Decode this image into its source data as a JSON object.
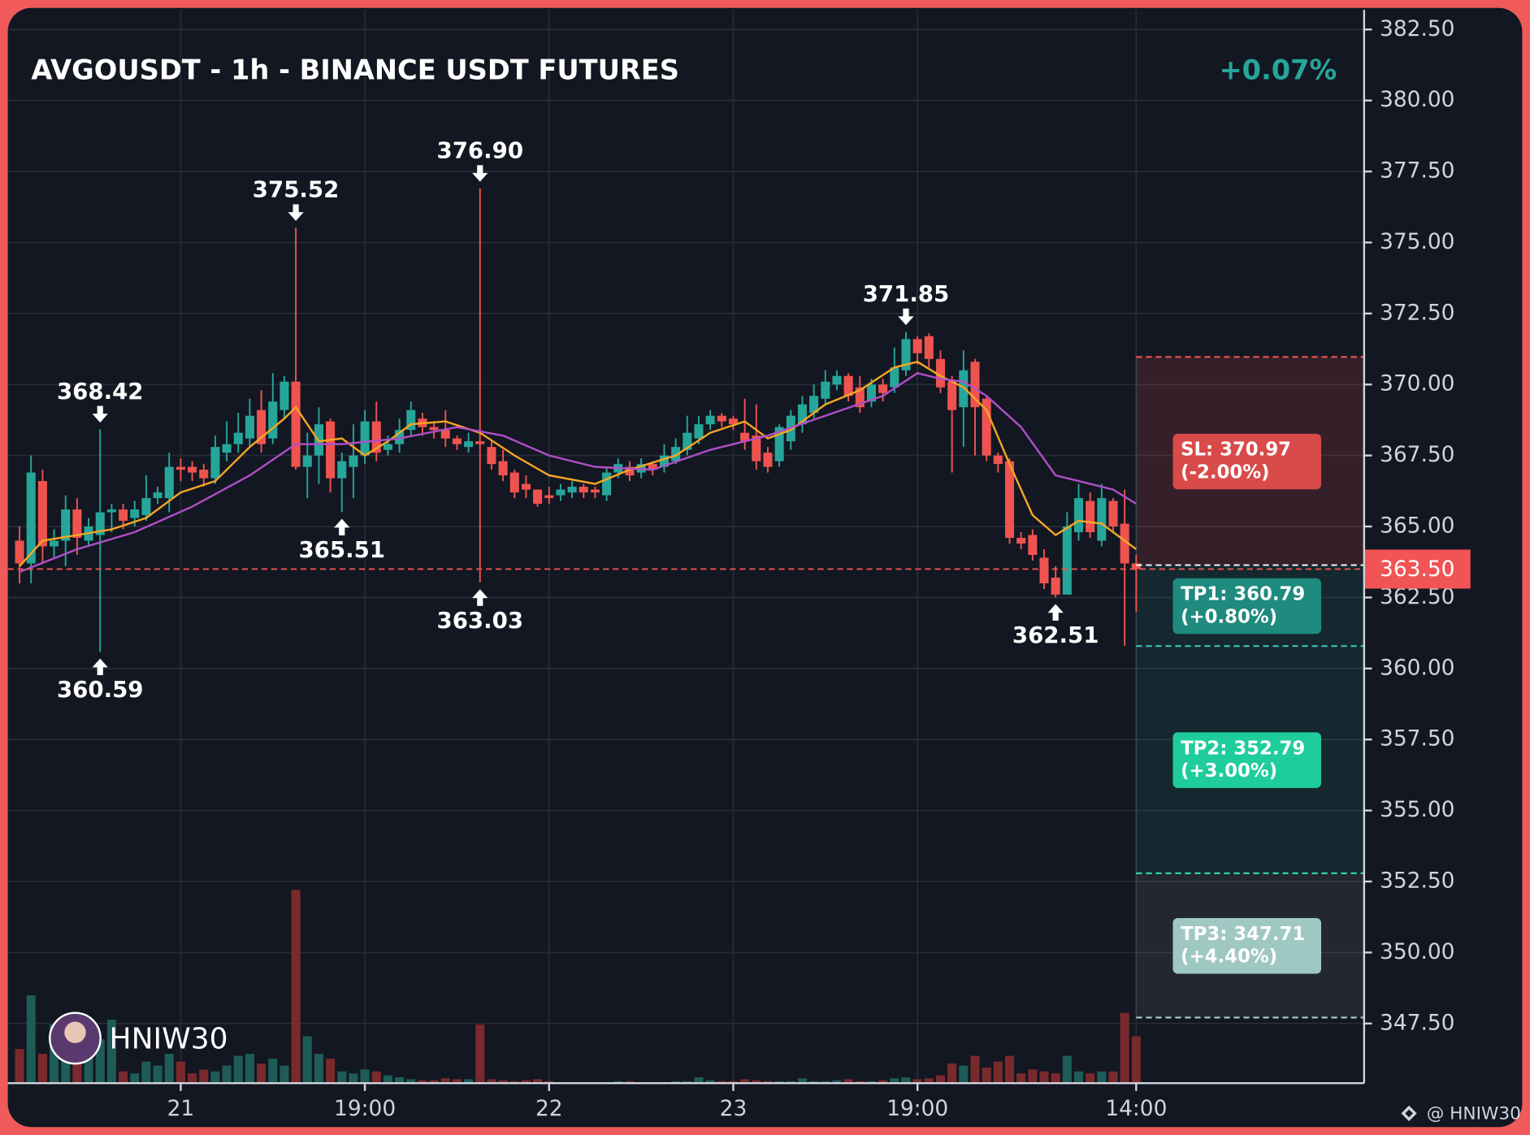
{
  "chart_data": {
    "type": "candlestick",
    "title": "AVGOUSDT - 1h - BINANCE USDT FUTURES",
    "change_label": "+0.07%",
    "watermark": "HNIW30",
    "footer": "@ HNIW30",
    "xlim": [
      -1.02,
      116.8
    ],
    "xticks": [
      {
        "value": 14,
        "label": "21"
      },
      {
        "value": 30,
        "label": "19:00"
      },
      {
        "value": 46,
        "label": "22"
      },
      {
        "value": 62,
        "label": "23"
      },
      {
        "value": 78,
        "label": "19:00"
      },
      {
        "value": 97,
        "label": "14:00"
      }
    ],
    "ylim": [
      345.4,
      383.19
    ],
    "yticks": [
      {
        "value": 382.5,
        "label": "382.50"
      },
      {
        "value": 380,
        "label": "380.00"
      },
      {
        "value": 377.5,
        "label": "377.50"
      },
      {
        "value": 375,
        "label": "375.00"
      },
      {
        "value": 372.5,
        "label": "372.50"
      },
      {
        "value": 370,
        "label": "370.00"
      },
      {
        "value": 367.5,
        "label": "367.50"
      },
      {
        "value": 365,
        "label": "365.00"
      },
      {
        "value": 362.5,
        "label": "362.50"
      },
      {
        "value": 360,
        "label": "360.00"
      },
      {
        "value": 357.5,
        "label": "357.50"
      },
      {
        "value": 355,
        "label": "355.00"
      },
      {
        "value": 352.5,
        "label": "352.50"
      },
      {
        "value": 350,
        "label": "350.00"
      },
      {
        "value": 347.5,
        "label": "347.50"
      }
    ],
    "grid": true,
    "up_color": "#26a69a",
    "down_color": "#ef5350",
    "open": [
      364.5,
      363.7,
      366.6,
      364.3,
      364.5,
      365.6,
      364.5,
      364.7,
      365.5,
      365.6,
      365.3,
      365.4,
      366.0,
      366.0,
      367.1,
      367.1,
      367.0,
      366.7,
      367.6,
      367.9,
      368.1,
      369.1,
      368.1,
      369.1,
      370.1,
      367.1,
      367.5,
      368.7,
      366.7,
      367.1,
      367.5,
      368.7,
      367.7,
      367.9,
      368.4,
      368.8,
      368.5,
      368.4,
      368.1,
      367.8,
      368.0,
      367.8,
      367.3,
      366.9,
      366.5,
      366.3,
      366.1,
      366.1,
      366.2,
      366.4,
      366.3,
      366.1,
      366.9,
      367.1,
      366.9,
      367.2,
      367.1,
      367.3,
      367.7,
      368.1,
      368.6,
      368.9,
      368.8,
      368.3,
      368.2,
      367.6,
      367.3,
      368.0,
      368.6,
      369.0,
      369.5,
      370.0,
      370.3,
      369.9,
      369.4,
      370.0,
      369.9,
      370.5,
      371.6,
      371.7,
      370.9,
      370.1,
      369.2,
      370.8,
      369.5,
      367.5,
      367.3,
      364.6,
      364.7,
      363.9,
      363.2,
      362.6,
      364.8,
      365.9,
      364.5,
      365.9,
      365.1,
      363.7
    ],
    "high": [
      365.0,
      367.5,
      367.0,
      364.9,
      366.1,
      366.0,
      365.3,
      368.42,
      365.8,
      365.8,
      365.9,
      366.8,
      366.4,
      367.6,
      367.4,
      367.3,
      367.2,
      368.2,
      368.7,
      369.0,
      369.5,
      369.8,
      370.4,
      370.3,
      375.52,
      368.3,
      369.2,
      368.8,
      367.6,
      368.6,
      369.1,
      369.4,
      368.2,
      368.8,
      369.4,
      369.0,
      368.7,
      369.1,
      368.2,
      368.3,
      376.9,
      368.0,
      367.7,
      367.0,
      366.8,
      366.3,
      366.4,
      366.5,
      366.6,
      366.5,
      366.4,
      367.1,
      367.4,
      367.3,
      367.4,
      367.3,
      367.9,
      368.1,
      368.9,
      368.9,
      369.1,
      369.0,
      368.9,
      369.5,
      369.3,
      367.8,
      368.6,
      369.1,
      369.6,
      370.0,
      370.5,
      370.5,
      370.4,
      370.3,
      370.2,
      370.2,
      371.3,
      371.85,
      371.7,
      371.8,
      371.2,
      370.3,
      371.2,
      370.9,
      369.6,
      367.6,
      367.4,
      364.8,
      364.9,
      364.2,
      363.6,
      365.5,
      366.5,
      366.2,
      366.5,
      366.0,
      366.3,
      364.0
    ],
    "low": [
      363.0,
      363.0,
      363.7,
      363.9,
      363.6,
      364.0,
      364.3,
      360.59,
      364.8,
      364.9,
      365.0,
      365.2,
      365.8,
      365.5,
      366.6,
      366.6,
      366.4,
      366.5,
      367.3,
      367.6,
      367.8,
      367.6,
      367.9,
      368.8,
      367.0,
      366.0,
      366.5,
      366.2,
      365.51,
      366.0,
      367.2,
      367.3,
      367.5,
      367.6,
      368.2,
      368.2,
      368.1,
      367.8,
      367.7,
      367.6,
      363.03,
      367.0,
      366.6,
      366.0,
      366.0,
      365.7,
      365.8,
      365.9,
      366.0,
      366.0,
      366.0,
      365.9,
      366.7,
      366.6,
      366.7,
      366.8,
      366.9,
      367.2,
      367.5,
      367.9,
      368.4,
      368.5,
      368.4,
      367.7,
      367.0,
      366.9,
      367.1,
      367.7,
      368.3,
      368.8,
      369.3,
      369.8,
      369.4,
      369.0,
      369.2,
      369.4,
      369.7,
      370.3,
      370.7,
      370.6,
      369.7,
      366.9,
      367.8,
      367.5,
      367.3,
      366.9,
      364.4,
      364.2,
      363.8,
      362.8,
      362.51,
      362.6,
      364.5,
      364.6,
      364.3,
      364.8,
      360.8,
      362.0
    ],
    "close": [
      363.7,
      366.9,
      364.3,
      364.5,
      365.6,
      364.6,
      365.0,
      365.5,
      365.6,
      365.2,
      365.6,
      366.0,
      366.2,
      367.1,
      367.0,
      366.9,
      366.7,
      367.8,
      367.9,
      368.3,
      368.9,
      367.9,
      369.4,
      370.1,
      367.1,
      367.5,
      368.6,
      366.7,
      367.3,
      367.5,
      368.7,
      367.6,
      367.9,
      368.4,
      369.1,
      368.5,
      368.4,
      368.1,
      367.9,
      368.0,
      367.9,
      367.2,
      366.8,
      366.2,
      366.3,
      365.8,
      366.0,
      366.3,
      366.4,
      366.2,
      366.2,
      366.9,
      367.2,
      366.8,
      367.2,
      367.0,
      367.5,
      367.8,
      368.3,
      368.6,
      368.9,
      368.7,
      368.6,
      368.0,
      367.3,
      367.1,
      368.5,
      368.9,
      369.3,
      369.6,
      370.1,
      370.3,
      369.6,
      369.2,
      370.0,
      369.7,
      370.6,
      371.6,
      371.1,
      370.9,
      369.9,
      369.1,
      370.5,
      369.2,
      367.5,
      367.2,
      364.6,
      364.4,
      364.0,
      363.0,
      362.6,
      365.0,
      366.0,
      364.8,
      366.0,
      365.0,
      363.7,
      363.5
    ],
    "volume": [
      35,
      90,
      30,
      60,
      40,
      55,
      30,
      45,
      65,
      12,
      10,
      22,
      18,
      30,
      22,
      10,
      14,
      12,
      18,
      28,
      30,
      20,
      25,
      18,
      198,
      48,
      30,
      25,
      12,
      10,
      14,
      12,
      8,
      6,
      4,
      3,
      3,
      5,
      4,
      4,
      60,
      4,
      3,
      2,
      3,
      4,
      2,
      1,
      1,
      1,
      1,
      1,
      2,
      2,
      1,
      1,
      1,
      2,
      2,
      6,
      3,
      2,
      2,
      4,
      3,
      2,
      2,
      2,
      5,
      2,
      2,
      3,
      4,
      2,
      2,
      3,
      5,
      6,
      4,
      5,
      8,
      20,
      18,
      28,
      16,
      22,
      28,
      10,
      14,
      12,
      10,
      28,
      12,
      10,
      12,
      12,
      72,
      48
    ],
    "vlim": [
      0,
      200
    ],
    "ma": [
      {
        "color": "#f5a623",
        "x": [
          0,
          2,
          5,
          8,
          11,
          14,
          17,
          20,
          23,
          24,
          26,
          28,
          30,
          32,
          34,
          37,
          40,
          43,
          46,
          50,
          53,
          57,
          60,
          63,
          65,
          67,
          70,
          73,
          76,
          78,
          80,
          82,
          84,
          86,
          88,
          90,
          92,
          94,
          96,
          97
        ],
        "values": [
          363.6,
          364.5,
          364.7,
          364.9,
          365.3,
          366.2,
          366.6,
          367.8,
          368.8,
          369.2,
          368.0,
          368.1,
          367.5,
          368.0,
          368.6,
          368.7,
          368.3,
          367.5,
          366.8,
          366.5,
          367.0,
          367.5,
          368.3,
          368.7,
          368.1,
          368.4,
          369.3,
          369.8,
          370.6,
          370.8,
          370.3,
          369.9,
          369.1,
          367.2,
          365.4,
          364.7,
          365.2,
          365.1,
          364.5,
          364.2
        ]
      },
      {
        "color": "#b04fc8",
        "x": [
          0,
          5,
          10,
          15,
          20,
          24,
          28,
          33,
          38,
          42,
          46,
          50,
          55,
          60,
          65,
          70,
          75,
          78,
          80,
          82,
          84,
          87,
          90,
          93,
          95,
          97
        ],
        "values": [
          363.4,
          364.2,
          364.8,
          365.7,
          366.8,
          367.9,
          367.9,
          368.1,
          368.5,
          368.2,
          367.5,
          367.1,
          367.0,
          367.7,
          368.2,
          368.9,
          369.6,
          370.4,
          370.2,
          370.1,
          369.6,
          368.5,
          366.8,
          366.5,
          366.3,
          365.8
        ]
      }
    ],
    "annotations": [
      {
        "x": 7,
        "value": 368.42,
        "label": "368.42"
      },
      {
        "x": 7,
        "value": 360.59,
        "label": "360.59"
      },
      {
        "x": 24,
        "value": 375.52,
        "label": "375.52"
      },
      {
        "x": 28,
        "value": 365.51,
        "label": "365.51"
      },
      {
        "x": 40,
        "value": 376.9,
        "label": "376.90"
      },
      {
        "x": 40,
        "value": 363.03,
        "label": "363.03"
      },
      {
        "x": 77,
        "value": 371.85,
        "label": "371.85"
      },
      {
        "x": 90,
        "value": 362.51,
        "label": "362.51"
      }
    ],
    "entry": {
      "value": 363.5,
      "label": "363.50"
    },
    "current_level": 363.64,
    "levels": [
      {
        "label": "SL: 370.97",
        "note": "(-2.00%)",
        "value": 370.97,
        "color": "#d94a4a"
      },
      {
        "label": "TP1: 360.79",
        "note": "(+0.80%)",
        "value": 360.79,
        "color": "#1f8a7e"
      },
      {
        "label": "TP2: 352.79",
        "note": "(+3.00%)",
        "value": 352.79,
        "color": "#1fcc9c"
      },
      {
        "label": "TP3: 347.71",
        "note": "(+4.40%)",
        "value": 347.71,
        "color": "#9fc8c3"
      }
    ]
  }
}
